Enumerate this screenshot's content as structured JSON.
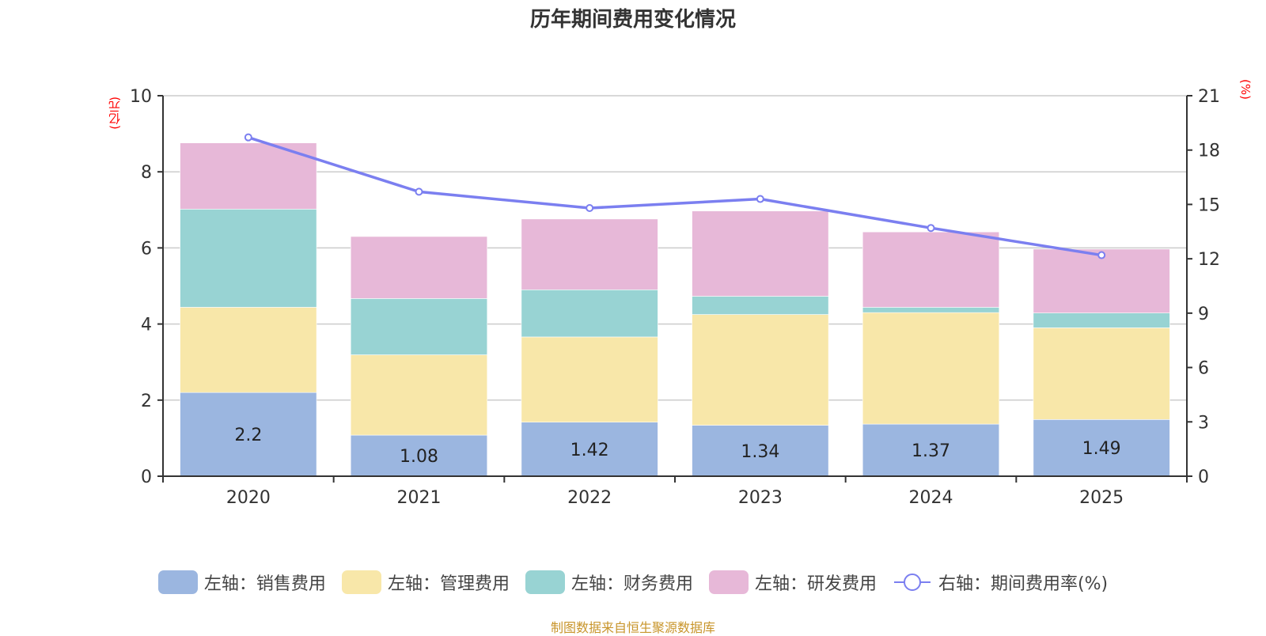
{
  "title": "历年期间费用变化情况",
  "footer": "制图数据来自恒生聚源数据库",
  "chart_data": {
    "type": "bar",
    "stacked": true,
    "title": "历年期间费用变化情况",
    "categories": [
      "2020",
      "2021",
      "2022",
      "2023",
      "2024",
      "2025"
    ],
    "left_axis": {
      "label": "(亿元)",
      "ylim": [
        0,
        10
      ],
      "ticks": [
        0,
        2,
        4,
        6,
        8,
        10
      ]
    },
    "right_axis": {
      "label": "(%)",
      "ylim": [
        0,
        21
      ],
      "ticks": [
        0,
        3,
        6,
        9,
        12,
        15,
        18,
        21
      ]
    },
    "grid": true,
    "legend_position": "bottom",
    "series": [
      {
        "name": "左轴：销售费用",
        "axis": "left",
        "kind": "bar",
        "color": "#9bb6e0",
        "values": [
          2.2,
          1.08,
          1.42,
          1.34,
          1.37,
          1.49
        ],
        "show_labels": true
      },
      {
        "name": "左轴：管理费用",
        "axis": "left",
        "kind": "bar",
        "color": "#f8e7a9",
        "values": [
          2.24,
          2.11,
          2.24,
          2.91,
          2.93,
          2.41
        ]
      },
      {
        "name": "左轴：财务费用",
        "axis": "left",
        "kind": "bar",
        "color": "#98d3d3",
        "values": [
          2.58,
          1.48,
          1.24,
          0.48,
          0.14,
          0.39
        ]
      },
      {
        "name": "左轴：研发费用",
        "axis": "left",
        "kind": "bar",
        "color": "#e7b8d8",
        "values": [
          1.74,
          1.63,
          1.86,
          2.24,
          1.98,
          1.68
        ]
      },
      {
        "name": "右轴：期间费用率(%)",
        "axis": "right",
        "kind": "line",
        "color": "#7b7ff0",
        "values": [
          18.7,
          15.7,
          14.8,
          15.3,
          13.7,
          12.2
        ]
      }
    ]
  }
}
